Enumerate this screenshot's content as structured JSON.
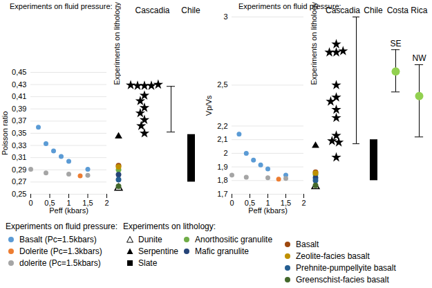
{
  "chart_data": {
    "type": "scatter",
    "legend": "bottom",
    "legend_titles": {
      "fluid": "Experiments on fluid pressure:",
      "lithology": "Experiments on lithology:"
    },
    "panels": [
      {
        "title": "Experiments on fluid pressure:",
        "x_label": "Peff (kbars)",
        "y_label": "Poisson ratio",
        "xlim": [
          0,
          2
        ],
        "xticks": [
          0,
          {
            "value": 0.5,
            "label": "0,5"
          },
          1,
          {
            "value": 1.5,
            "label": "1,5"
          },
          2
        ],
        "ylim": [
          0.25,
          0.45
        ],
        "yticks": [
          {
            "value": 0.25,
            "label": "0,25"
          },
          {
            "value": 0.27,
            "label": "0,27"
          },
          {
            "value": 0.29,
            "label": "0,29"
          },
          {
            "value": 0.31,
            "label": "0,31"
          },
          {
            "value": 0.33,
            "label": "0,33"
          },
          {
            "value": 0.35,
            "label": "0,35"
          },
          {
            "value": 0.37,
            "label": "0,37"
          },
          {
            "value": 0.39,
            "label": "0,39"
          },
          {
            "value": 0.41,
            "label": "0,41"
          },
          {
            "value": 0.43,
            "label": "0,43"
          },
          {
            "value": 0.45,
            "label": "0,45"
          }
        ],
        "grid": true,
        "series": [
          {
            "name": "Basalt (Pc=1.5kbars)",
            "color": "#5b9bd5",
            "marker": "circle",
            "x": [
              0.2,
              0.4,
              0.6,
              0.8,
              1.0,
              1.5
            ],
            "values": [
              0.36,
              0.333,
              0.321,
              0.312,
              0.304,
              0.291
            ]
          },
          {
            "name": "Dolerite (Pc=1.3kbars)",
            "color": "#ed7d31",
            "marker": "circle",
            "x": [
              1.3
            ],
            "values": [
              0.28
            ]
          },
          {
            "name": "dolerite (Pc=1.5kbars)",
            "color": "#a5a5a5",
            "marker": "circle",
            "x": [
              0,
              0.4,
              1.0,
              1.5
            ],
            "values": [
              0.291,
              0.285,
              0.283,
              0.281
            ]
          }
        ],
        "lithology": {
          "label": "Experiments on lithology",
          "series": [
            {
              "name": "Dunite",
              "color": "#000000",
              "marker": "triangle-open",
              "values": [
                0.26
              ]
            },
            {
              "name": "Serpentine",
              "color": "#000000",
              "marker": "triangle",
              "values": [
                0.345
              ]
            },
            {
              "name": "Slate",
              "color": "#000000",
              "marker": "square",
              "values": [
                null
              ]
            },
            {
              "name": "Anorthositic granulite",
              "color": "#70ad47",
              "marker": "circle",
              "values": [
                0.29
              ]
            },
            {
              "name": "Mafic granulite",
              "color": "#264478",
              "marker": "circle",
              "values": [
                0.282
              ]
            },
            {
              "name": "Basalt",
              "color": "#9e480e",
              "marker": "circle",
              "values": [
                0.297
              ]
            },
            {
              "name": "Zeolite-facies basalt",
              "color": "#bf9000",
              "marker": "circle",
              "values": [
                0.295
              ]
            },
            {
              "name": "Prehnite-pumpellyite basalt",
              "color": "#255e91",
              "marker": "circle",
              "values": [
                0.274
              ]
            },
            {
              "name": "Greenschist-facies basalt",
              "color": "#43682b",
              "marker": "circle",
              "values": [
                0.263
              ]
            }
          ]
        },
        "observations": [
          {
            "name": "Cascadia",
            "marker": "star",
            "color": "#000000",
            "stars": [
              0.428,
              0.428,
              0.428,
              0.43,
              0.429,
              0.412,
              0.403,
              0.392,
              0.383,
              0.372,
              0.362,
              0.35
            ],
            "range": [
              0.352,
              0.427
            ]
          },
          {
            "name": "Chile",
            "type": "bar",
            "color": "#000000",
            "range": [
              0.27,
              0.348
            ]
          }
        ]
      },
      {
        "title": "Experiments on fluid pressure:",
        "x_label": "Peff (kbars)",
        "y_label": "Vp/Vs",
        "xlim": [
          0,
          2
        ],
        "xticks": [
          0,
          {
            "value": 0.5,
            "label": "0,5"
          },
          1,
          {
            "value": 1.5,
            "label": "1,5"
          },
          2
        ],
        "ylim": [
          1.7,
          3
        ],
        "yticks": [
          {
            "value": 1.7,
            "label": "1,7"
          },
          {
            "value": 1.8,
            "label": "1,8"
          },
          {
            "value": 1.9,
            "label": "1,9"
          },
          2,
          {
            "value": 2.1,
            "label": "2,1"
          },
          {
            "value": 2.2,
            "label": "2,2"
          },
          {
            "value": 2.5,
            "label": "2,5"
          },
          3
        ],
        "grid": true,
        "series": [
          {
            "name": "Basalt (Pc=1.5kbars)",
            "color": "#5b9bd5",
            "marker": "circle",
            "x": [
              0.2,
              0.4,
              0.6,
              0.8,
              1.0,
              1.5
            ],
            "values": [
              2.14,
              2.0,
              1.95,
              1.915,
              1.885,
              1.84
            ]
          },
          {
            "name": "Dolerite (Pc=1.3kbars)",
            "color": "#ed7d31",
            "marker": "circle",
            "x": [
              1.3
            ],
            "values": [
              1.81
            ]
          },
          {
            "name": "dolerite (Pc=1.5kbars)",
            "color": "#a5a5a5",
            "marker": "circle",
            "x": [
              0,
              0.4,
              1.0,
              1.5
            ],
            "values": [
              1.84,
              1.825,
              1.82,
              1.815
            ]
          }
        ],
        "lithology": {
          "label": "Experiments on lithology",
          "series": [
            {
              "name": "Dunite",
              "color": "#000000",
              "marker": "triangle-open",
              "values": [
                1.756
              ]
            },
            {
              "name": "Serpentine",
              "color": "#000000",
              "marker": "triangle",
              "values": [
                2.056
              ]
            },
            {
              "name": "Slate",
              "color": "#000000",
              "marker": "square",
              "values": [
                null
              ]
            },
            {
              "name": "Anorthositic granulite",
              "color": "#70ad47",
              "marker": "circle",
              "values": [
                1.843
              ]
            },
            {
              "name": "Mafic granulite",
              "color": "#264478",
              "marker": "circle",
              "values": [
                1.82
              ]
            },
            {
              "name": "Basalt",
              "color": "#9e480e",
              "marker": "circle",
              "values": [
                1.861
              ]
            },
            {
              "name": "Zeolite-facies basalt",
              "color": "#bf9000",
              "marker": "circle",
              "values": [
                1.855
              ]
            },
            {
              "name": "Prehnite-pumpellyite basalt",
              "color": "#255e91",
              "marker": "circle",
              "values": [
                1.8
              ]
            },
            {
              "name": "Greenschist-facies basalt",
              "color": "#43682b",
              "marker": "circle",
              "values": [
                1.765
              ]
            }
          ]
        },
        "observations": [
          {
            "name": "Cascadia",
            "marker": "star",
            "color": "#000000",
            "stars": [
              2.8,
              2.74,
              2.74,
              2.75,
              2.5,
              2.41,
              2.38,
              2.32,
              2.26,
              2.13,
              2.09,
              2.08,
              1.97
            ],
            "range": [
              2.07,
              3
            ]
          },
          {
            "name": "Chile",
            "type": "bar",
            "color": "#000000",
            "range": [
              1.8,
              2.1
            ]
          },
          {
            "name": "Costa Rica",
            "marker": "circle",
            "color": "#92d050",
            "points": [
              {
                "label": "SE",
                "value": 2.6,
                "range": [
                  2.45,
                  2.76
                ]
              },
              {
                "label": "NW",
                "value": 2.42,
                "range": [
                  2.12,
                  2.65
                ]
              }
            ]
          }
        ]
      }
    ]
  }
}
